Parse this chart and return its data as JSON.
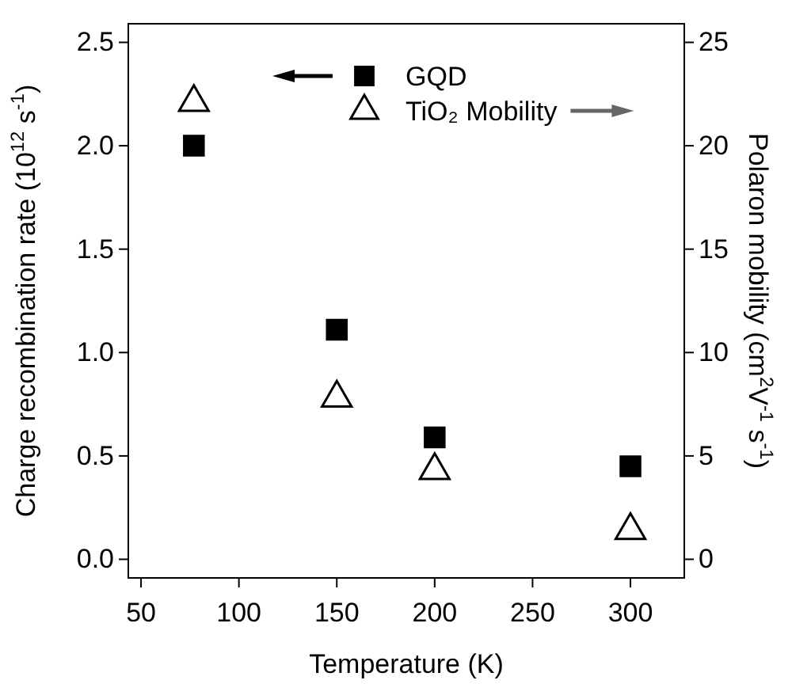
{
  "chart_data": {
    "type": "scatter",
    "xlabel": "Temperature (K)",
    "ylabel": "Charge recombination rate (10$^{12}$ s$^{-1}$)",
    "y2label": "Polaron mobility (cm$^{2}$V$^{-1}$ s$^{-1}$)",
    "x": [
      77,
      150,
      200,
      300
    ],
    "xlim": [
      43.5,
      327.5
    ],
    "xticks": [
      50,
      100,
      150,
      200,
      250,
      300
    ],
    "ylim": [
      -0.09,
      2.59
    ],
    "yticks": [
      {
        "value": 0,
        "label": "0.0"
      },
      {
        "value": 0.5,
        "label": "0.5"
      },
      {
        "value": 1,
        "label": "1.0"
      },
      {
        "value": 1.5,
        "label": "1.5"
      },
      {
        "value": 2,
        "label": "2.0"
      },
      {
        "value": 2.5,
        "label": "2.5"
      }
    ],
    "y2lim": [
      -0.9,
      25.9
    ],
    "y2ticks": [
      0,
      5,
      10,
      15,
      20,
      25
    ],
    "series": [
      {
        "name": "GQD",
        "color": "#000000",
        "marker": "square",
        "values": [
          2.0,
          1.11,
          0.59,
          0.45
        ]
      },
      {
        "name": "TiO₂ Mobility",
        "color": "#000000",
        "marker": "triangle",
        "axis": "y2",
        "values": [
          22.1,
          7.8,
          4.3,
          1.4
        ]
      }
    ],
    "legend": "top",
    "grid": false
  }
}
